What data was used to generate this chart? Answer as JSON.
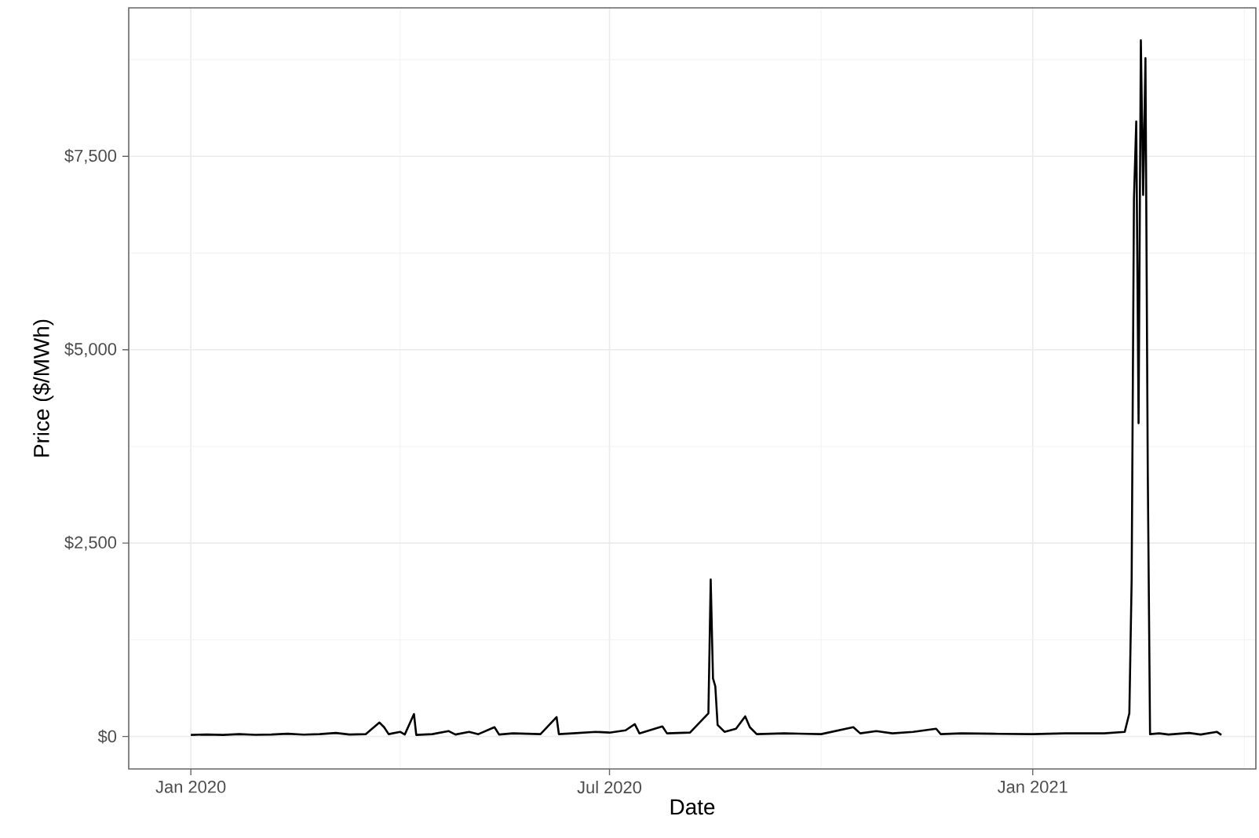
{
  "chart_data": {
    "type": "line",
    "xlabel": "Date",
    "ylabel": "Price ($/MWh)",
    "grid": true,
    "marker": "none",
    "line_style": "solid",
    "xlim": [
      "2019-12-05",
      "2021-04-08"
    ],
    "xticks": [
      {
        "value": "2020-01-01",
        "label": "Jan 2020"
      },
      {
        "value": "2020-07-01",
        "label": "Jul 2020"
      },
      {
        "value": "2021-01-01",
        "label": "Jan 2021"
      }
    ],
    "ylim": [
      -420,
      9420
    ],
    "yticks": [
      {
        "value": 0,
        "label": "$0"
      },
      {
        "value": 2500,
        "label": "$2,500"
      },
      {
        "value": 5000,
        "label": "$5,000"
      },
      {
        "value": 7500,
        "label": "$7,500"
      }
    ],
    "series": [
      {
        "color": "#000000",
        "x": [
          "2020-01-01",
          "2020-01-08",
          "2020-01-15",
          "2020-01-22",
          "2020-01-29",
          "2020-02-05",
          "2020-02-12",
          "2020-02-19",
          "2020-02-26",
          "2020-03-04",
          "2020-03-10",
          "2020-03-17",
          "2020-03-23",
          "2020-03-25",
          "2020-03-27",
          "2020-04-01",
          "2020-04-03",
          "2020-04-07",
          "2020-04-08",
          "2020-04-15",
          "2020-04-22",
          "2020-04-25",
          "2020-05-01",
          "2020-05-05",
          "2020-05-12",
          "2020-05-14",
          "2020-05-20",
          "2020-06-01",
          "2020-06-08",
          "2020-06-09",
          "2020-06-15",
          "2020-06-25",
          "2020-07-01",
          "2020-07-08",
          "2020-07-12",
          "2020-07-14",
          "2020-07-24",
          "2020-07-26",
          "2020-08-05",
          "2020-08-13",
          "2020-08-14",
          "2020-08-15",
          "2020-08-16",
          "2020-08-17",
          "2020-08-20",
          "2020-08-25",
          "2020-08-29",
          "2020-08-31",
          "2020-09-03",
          "2020-09-15",
          "2020-10-01",
          "2020-10-15",
          "2020-10-18",
          "2020-10-25",
          "2020-11-01",
          "2020-11-10",
          "2020-11-20",
          "2020-11-22",
          "2020-12-01",
          "2020-12-15",
          "2021-01-01",
          "2021-01-15",
          "2021-02-01",
          "2021-02-10",
          "2021-02-12",
          "2021-02-13",
          "2021-02-14",
          "2021-02-15",
          "2021-02-16",
          "2021-02-17",
          "2021-02-18",
          "2021-02-19",
          "2021-02-20",
          "2021-02-21",
          "2021-02-25",
          "2021-03-01",
          "2021-03-10",
          "2021-03-15",
          "2021-03-22",
          "2021-03-24"
        ],
        "values": [
          20,
          25,
          20,
          30,
          22,
          25,
          35,
          24,
          30,
          45,
          25,
          30,
          180,
          120,
          30,
          60,
          25,
          290,
          20,
          30,
          70,
          25,
          60,
          30,
          120,
          25,
          40,
          30,
          250,
          30,
          40,
          60,
          50,
          80,
          160,
          40,
          130,
          40,
          50,
          300,
          2030,
          750,
          650,
          150,
          60,
          100,
          260,
          120,
          30,
          40,
          30,
          120,
          40,
          70,
          40,
          60,
          100,
          30,
          40,
          35,
          30,
          40,
          40,
          60,
          300,
          2030,
          6950,
          7950,
          4050,
          9000,
          7000,
          8770,
          3450,
          30,
          40,
          25,
          45,
          25,
          60,
          20
        ]
      }
    ]
  }
}
